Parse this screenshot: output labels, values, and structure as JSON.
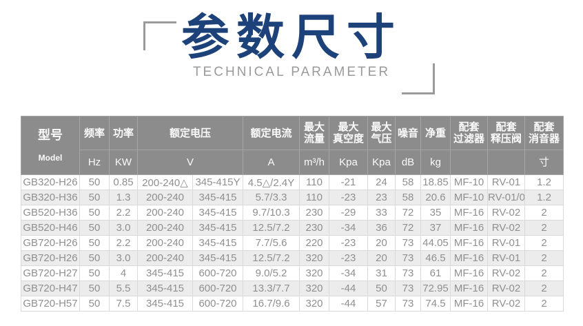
{
  "title": {
    "heading": "参数尺寸",
    "subheading": "TECHNICAL PARAMETER"
  },
  "colors": {
    "title_blue": "#1d4179",
    "subtitle_gray": "#9a9a9a",
    "bracket_gray": "#9a9a9a",
    "header_bg": "#8c8c8c",
    "header_border": "#a6a6a6",
    "header_text": "#fbfbfb",
    "data_text": "#8f8f8f",
    "row_alt_bg": "#ececec",
    "data_border": "#d9d9d9"
  },
  "table": {
    "header": {
      "model_label": "型号",
      "model_sublabel": "Model",
      "columns": [
        {
          "label": "频率",
          "unit": "Hz"
        },
        {
          "label": "功率",
          "unit": "KW"
        },
        {
          "label": "额定电压",
          "unit": "V"
        },
        {
          "label": "额定电流",
          "unit": "A"
        },
        {
          "label": "最大\n流量",
          "unit": "m³/h"
        },
        {
          "label": "最大\n真空度",
          "unit": "Kpa"
        },
        {
          "label": "最大\n气压",
          "unit": "Kpa"
        },
        {
          "label": "噪音",
          "unit": "dB"
        },
        {
          "label": "净重",
          "unit": "kg"
        },
        {
          "label": "配套\n过滤器",
          "unit": ""
        },
        {
          "label": "配套\n释压阀",
          "unit": ""
        },
        {
          "label": "配套\n消音器",
          "unit": "寸"
        }
      ]
    },
    "rows": [
      [
        "GB320-H26",
        "50",
        "0.85",
        "200-240△",
        "345-415Y",
        "4.5△/2.4Y",
        "110",
        "-21",
        "24",
        "58",
        "18.85",
        "MF-10",
        "RV-01",
        "1.2"
      ],
      [
        "GB320-H36",
        "50",
        "1.3",
        "200-240",
        "345-415",
        "5.7/3.3",
        "110",
        "-23",
        "23",
        "58",
        "20.6",
        "MF-10",
        "RV-01/02",
        "1.2"
      ],
      [
        "GB520-H36",
        "50",
        "2.2",
        "200-240",
        "345-415",
        "9.7/10.3",
        "230",
        "-29",
        "33",
        "72",
        "35",
        "MF-16",
        "RV-02",
        "2"
      ],
      [
        "GB520-H46",
        "50",
        "3.0",
        "200-240",
        "345-415",
        "12.5/7.2",
        "230",
        "-34",
        "36",
        "72",
        "37",
        "MF-16",
        "RV-02",
        "2"
      ],
      [
        "GB720-H26",
        "50",
        "2.2",
        "200-240",
        "345-415",
        "7.7/5.6",
        "220",
        "-23",
        "20",
        "73",
        "44.05",
        "MF-16",
        "RV-01",
        "2"
      ],
      [
        "GB720-H26",
        "50",
        "3.0",
        "200-240",
        "345-415",
        "12.5/7.2",
        "320",
        "-23",
        "20",
        "73",
        "46.5",
        "MF-16",
        "RV-01",
        "2"
      ],
      [
        "GB720-H27",
        "50",
        "4",
        "345-415",
        "600-720",
        "9.0/5.2",
        "320",
        "-34",
        "31",
        "73",
        "61",
        "MF-16",
        "RV-02",
        "2"
      ],
      [
        "GB720-H47",
        "50",
        "5.5",
        "345-415",
        "600-720",
        "13.3/7.7",
        "320",
        "-44",
        "50",
        "73",
        "72.95",
        "MF-16",
        "RV-02",
        "2"
      ],
      [
        "GB720-H57",
        "50",
        "7.5",
        "345-415",
        "600-720",
        "16.7/9.6",
        "320",
        "-44",
        "57",
        "73",
        "74.5",
        "MF-16",
        "RV-02",
        "2"
      ]
    ]
  }
}
